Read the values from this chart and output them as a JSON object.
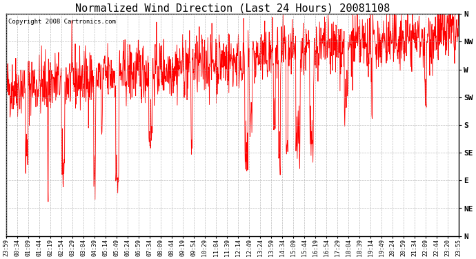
{
  "title": "Normalized Wind Direction (Last 24 Hours) 20081108",
  "copyright_text": "Copyright 2008 Cartronics.com",
  "line_color": "#FF0000",
  "background_color": "#FFFFFF",
  "grid_color": "#AAAAAA",
  "ytick_labels": [
    "N",
    "NW",
    "W",
    "SW",
    "S",
    "SE",
    "E",
    "NE",
    "N"
  ],
  "ytick_values": [
    360,
    315,
    270,
    225,
    180,
    135,
    90,
    45,
    0
  ],
  "ylim": [
    0,
    360
  ],
  "xtick_labels": [
    "23:59",
    "00:34",
    "01:09",
    "01:44",
    "02:19",
    "02:54",
    "03:29",
    "03:04",
    "04:39",
    "05:14",
    "05:49",
    "06:24",
    "06:59",
    "07:34",
    "08:09",
    "08:44",
    "09:19",
    "09:54",
    "10:29",
    "11:04",
    "11:39",
    "12:14",
    "12:49",
    "13:24",
    "13:59",
    "14:34",
    "15:09",
    "15:44",
    "16:19",
    "16:54",
    "17:29",
    "18:04",
    "18:39",
    "19:14",
    "19:49",
    "20:24",
    "20:59",
    "21:34",
    "22:09",
    "22:44",
    "23:20",
    "23:55"
  ],
  "n_points": 1440,
  "seed": 42,
  "figwidth": 6.9,
  "figheight": 3.75,
  "dpi": 100
}
